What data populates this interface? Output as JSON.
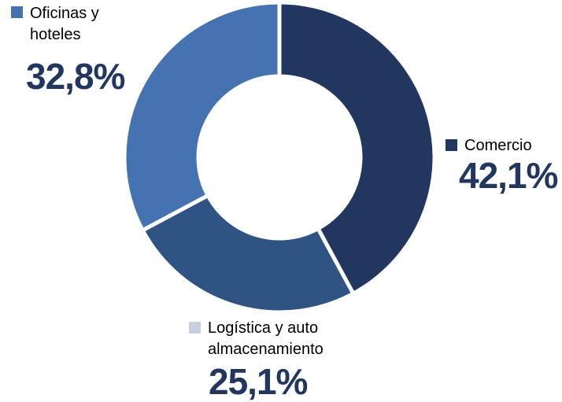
{
  "chart_data": {
    "type": "donut",
    "categories": [
      "Comercio",
      "Logística y auto almacenamiento",
      "Oficinas y hoteles"
    ],
    "values": [
      42.1,
      25.1,
      32.8
    ],
    "value_labels": [
      "42,1%",
      "25,1%",
      "32,8%"
    ],
    "colors": [
      "#22375f",
      "#2f5382",
      "#4573b1"
    ],
    "legend_colors": [
      "#22375f",
      "#c6d0de",
      "#4573b1"
    ]
  }
}
